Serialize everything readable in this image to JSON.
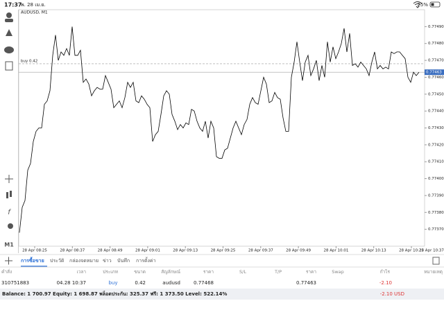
{
  "status_bar": {
    "time": "17:37",
    "date": "พ. 28 เม.ย.",
    "battery": "25%"
  },
  "chart_data": {
    "type": "line",
    "title": "AUDUSD, M1",
    "timeframe": "M1",
    "color": "#000000",
    "values": [
      0.77368,
      0.77383,
      0.77387,
      0.77405,
      0.77409,
      0.77422,
      0.77428,
      0.7743,
      0.7743,
      0.77444,
      0.77446,
      0.77452,
      0.77473,
      0.77485,
      0.7747,
      0.77475,
      0.77473,
      0.77477,
      0.77473,
      0.7749,
      0.77473,
      0.77473,
      0.77476,
      0.77457,
      0.77459,
      0.77456,
      0.77449,
      0.77452,
      0.77454,
      0.77453,
      0.77453,
      0.77461,
      0.77457,
      0.77453,
      0.77442,
      0.77444,
      0.77446,
      0.77442,
      0.77448,
      0.77457,
      0.77454,
      0.77457,
      0.77446,
      0.77445,
      0.77449,
      0.77447,
      0.77444,
      0.77442,
      0.77422,
      0.77426,
      0.77428,
      0.77438,
      0.77449,
      0.77452,
      0.7745,
      0.77438,
      0.77434,
      0.77429,
      0.77432,
      0.7743,
      0.77433,
      0.77432,
      0.77441,
      0.7744,
      0.77434,
      0.7743,
      0.77428,
      0.77434,
      0.77424,
      0.77434,
      0.7743,
      0.77413,
      0.77412,
      0.77412,
      0.77417,
      0.77418,
      0.77424,
      0.7743,
      0.77434,
      0.7743,
      0.77426,
      0.77432,
      0.77435,
      0.77444,
      0.77448,
      0.77445,
      0.77444,
      0.77452,
      0.7746,
      0.77456,
      0.77445,
      0.77446,
      0.77451,
      0.77448,
      0.77447,
      0.77436,
      0.77428,
      0.77428,
      0.7746,
      0.77469,
      0.77481,
      0.77469,
      0.77458,
      0.77469,
      0.77473,
      0.77461,
      0.77465,
      0.7747,
      0.77458,
      0.77467,
      0.7746,
      0.77481,
      0.77469,
      0.77478,
      0.77471,
      0.77475,
      0.7748,
      0.77489,
      0.77475,
      0.77486,
      0.77467,
      0.77468,
      0.77466,
      0.77469,
      0.77467,
      0.77465,
      0.77461,
      0.77469,
      0.77475,
      0.77465,
      0.77467,
      0.77465,
      0.77466,
      0.77465,
      0.77475,
      0.77474,
      0.77475,
      0.77475,
      0.77473,
      0.77471,
      0.7746,
      0.77457,
      0.77463,
      0.77461,
      0.77463
    ],
    "x_tick_labels": [
      "28 Apr 08:25",
      "28 Apr 08:37",
      "28 Apr 08:49",
      "28 Apr 09:01",
      "28 Apr 09:13",
      "28 Apr 09:25",
      "28 Apr 09:37",
      "28 Apr 09:49",
      "28 Apr 10:01",
      "28 Apr 10:13",
      "28 Apr 10:25",
      "28 Apr 10:37"
    ],
    "ylim": [
      0.7736,
      0.775
    ],
    "yticks": [
      {
        "value": 0.7737,
        "label": "0.77370"
      },
      {
        "value": 0.7738,
        "label": "0.77380"
      },
      {
        "value": 0.7739,
        "label": "0.77390"
      },
      {
        "value": 0.774,
        "label": "0.77400"
      },
      {
        "value": 0.7741,
        "label": "0.77410"
      },
      {
        "value": 0.7742,
        "label": "0.77420"
      },
      {
        "value": 0.7743,
        "label": "0.77430"
      },
      {
        "value": 0.7744,
        "label": "0.77440"
      },
      {
        "value": 0.7745,
        "label": "0.77450"
      },
      {
        "value": 0.7746,
        "label": "0.77460"
      },
      {
        "value": 0.7747,
        "label": "0.77470"
      },
      {
        "value": 0.7748,
        "label": "0.77480"
      },
      {
        "value": 0.7749,
        "label": "0.77490"
      }
    ],
    "last_price": 0.77463,
    "buy_line": {
      "label": "buy 0.42",
      "value": 0.77468
    }
  },
  "tabs": [
    "การซื้อขาย",
    "ประวัติ",
    "กล่องจดหมาย",
    "ข่าว",
    "บันทึก",
    "การตั้งค่า"
  ],
  "table": {
    "headers": [
      "คำสั่ง",
      "เวลา",
      "ประเภท",
      "ขนาด",
      "สัญลักษณ์",
      "ราคา",
      "S/L",
      "T/P",
      "ราคา",
      "Swap",
      "กำไร",
      "หมายเหตุ"
    ],
    "row": {
      "order": "310751883",
      "time": "04.28 10:37",
      "type": "buy",
      "size": "0.42",
      "symbol": "audusd",
      "open_price": "0.77468",
      "price": "0.77463",
      "profit": "-2.10"
    }
  },
  "footer": {
    "summary": "Balance: 1 700.97 Equity: 1 698.87 พล็อตประกัน: 325.37 ฟรี: 1 373.50 Level: 522.14%",
    "total": "-2.10 USD"
  }
}
